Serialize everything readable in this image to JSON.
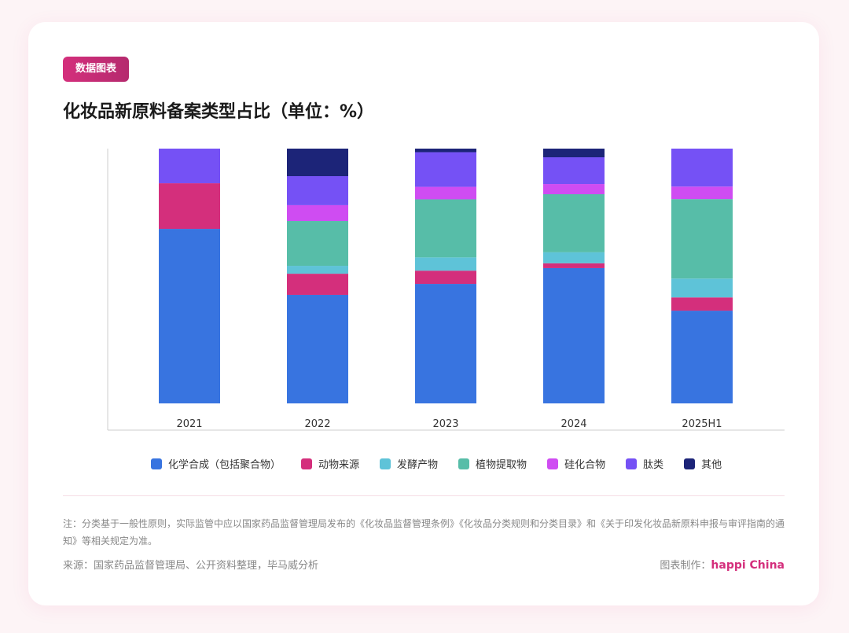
{
  "badge": "数据图表",
  "title": "化妆品新原料备案类型占比（单位：%）",
  "chart_data": {
    "type": "bar",
    "stacked": true,
    "title": "化妆品新原料备案类型占比（单位：%）",
    "categories": [
      "2021",
      "2022",
      "2023",
      "2024",
      "2025H1"
    ],
    "ylim": [
      0,
      100
    ],
    "grid": false,
    "legend_position": "bottom",
    "series": [
      {
        "name": "化学合成（包括聚合物）",
        "color": "#3874E0",
        "values": [
          68.5,
          42.6,
          46.9,
          53.1,
          36.4
        ]
      },
      {
        "name": "动物来源",
        "color": "#D42F7C",
        "values": [
          17.9,
          8.3,
          5.2,
          1.9,
          5.2
        ]
      },
      {
        "name": "发酵产物",
        "color": "#5EC3D8",
        "values": [
          0,
          3.1,
          5.2,
          4.3,
          7.4
        ]
      },
      {
        "name": "植物提取物",
        "color": "#57BDA8",
        "values": [
          0,
          17.6,
          22.8,
          22.8,
          31.2
        ]
      },
      {
        "name": "硅化合物",
        "color": "#CF4CF2",
        "values": [
          0,
          6.2,
          4.9,
          4.0,
          4.9
        ]
      },
      {
        "name": "肽类",
        "color": "#7551F5",
        "values": [
          13.6,
          11.4,
          13.6,
          10.5,
          14.9
        ]
      },
      {
        "name": "其他",
        "color": "#1C2478",
        "values": [
          0,
          10.8,
          1.4,
          3.4,
          0
        ]
      }
    ]
  },
  "footer": {
    "note": "注：分类基于一般性原则，实际监管中应以国家药品监督管理局发布的《化妆品监督管理条例》《化妆品分类规则和分类目录》和《关于印发化妆品新原料申报与审评指南的通知》等相关规定为准。",
    "source": "来源：国家药品监督管理局、公开资料整理，毕马威分析",
    "credit_label": "图表制作：",
    "credit_brand": "happi China"
  }
}
